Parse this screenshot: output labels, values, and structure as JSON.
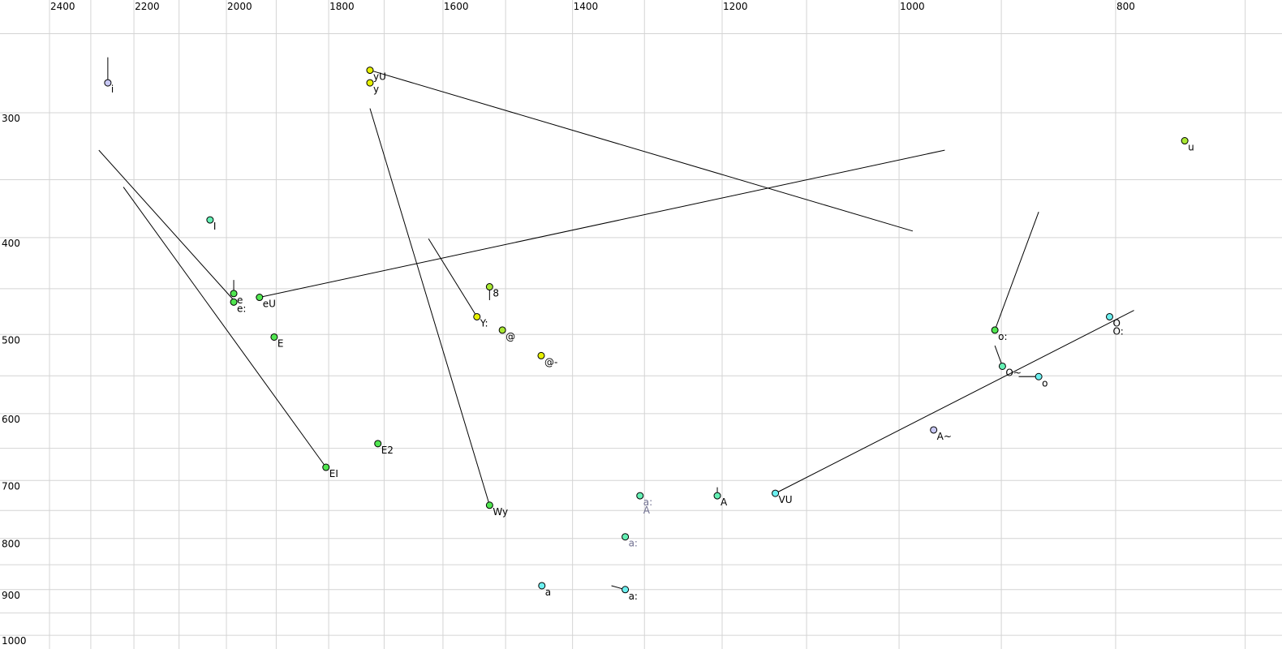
{
  "chart_data": {
    "type": "scatter",
    "title": "",
    "xlabel": "",
    "ylabel": "",
    "x_axis": {
      "quantity": "F2",
      "scale": "log",
      "reversed": true,
      "range": [
        2400,
        700
      ],
      "grid_step": 100,
      "tick_labels": [
        2400,
        2200,
        2000,
        1800,
        1600,
        1400,
        1200,
        1000,
        800
      ]
    },
    "y_axis": {
      "quantity": "F1",
      "scale": "log",
      "reversed": false,
      "range": [
        250,
        1000
      ],
      "grid_step": 50,
      "tick_labels": [
        300,
        400,
        500,
        600,
        700,
        800,
        900,
        1000
      ]
    },
    "grid": true,
    "colors": {
      "lavender": "#c8c8f4",
      "yellow": "#e6f000",
      "lime": "#a8e832",
      "green": "#50e650",
      "mint": "#64f0b4",
      "cyan": "#6cf0f0",
      "line": "#000000",
      "gray_label": "#707090"
    },
    "points": [
      {
        "label": "i",
        "f2": 2260,
        "f1": 280,
        "color": "lavender"
      },
      {
        "label": "yU",
        "f2": 1725,
        "f1": 272,
        "color": "yellow"
      },
      {
        "label": "y",
        "f2": 1725,
        "f1": 280,
        "color": "yellow"
      },
      {
        "label": "u",
        "f2": 745,
        "f1": 320,
        "color": "lime"
      },
      {
        "label": "I",
        "f2": 2034,
        "f1": 384,
        "color": "mint"
      },
      {
        "label": "e",
        "f2": 1985,
        "f1": 455,
        "color": "green"
      },
      {
        "label": "e:",
        "f2": 1985,
        "f1": 464,
        "color": "green"
      },
      {
        "label": "eU",
        "f2": 1933,
        "f1": 459,
        "color": "green"
      },
      {
        "label": "E",
        "f2": 1904,
        "f1": 503,
        "color": "green"
      },
      {
        "label": "EI",
        "f2": 1805,
        "f1": 679,
        "color": "green"
      },
      {
        "label": "E2",
        "f2": 1711,
        "f1": 643,
        "color": "green"
      },
      {
        "label": "8",
        "f2": 1525,
        "f1": 448,
        "color": "lime"
      },
      {
        "label": "Y:",
        "f2": 1545,
        "f1": 480,
        "color": "yellow"
      },
      {
        "label": "@",
        "f2": 1505,
        "f1": 495,
        "color": "lime"
      },
      {
        "label": "@-",
        "f2": 1446,
        "f1": 525,
        "color": "yellow"
      },
      {
        "label": "Wy",
        "f2": 1525,
        "f1": 741,
        "color": "green"
      },
      {
        "label": "a",
        "f2": 1445,
        "f1": 892,
        "color": "cyan"
      },
      {
        "label": "a:\nA",
        "f2": 1306,
        "f1": 725,
        "color": "mint",
        "gray": true
      },
      {
        "label": "a:",
        "f2": 1326,
        "f1": 797,
        "color": "mint",
        "gray": true
      },
      {
        "label": "a:",
        "f2": 1326,
        "f1": 900,
        "color": "cyan"
      },
      {
        "label": "A",
        "f2": 1206,
        "f1": 725,
        "color": "mint"
      },
      {
        "label": "VU",
        "f2": 1136,
        "f1": 721,
        "color": "cyan"
      },
      {
        "label": "A~",
        "f2": 965,
        "f1": 623,
        "color": "lavender"
      },
      {
        "label": "o:",
        "f2": 906,
        "f1": 495,
        "color": "green"
      },
      {
        "label": "O~",
        "f2": 899,
        "f1": 538,
        "color": "mint"
      },
      {
        "label": "o",
        "f2": 866,
        "f1": 551,
        "color": "cyan"
      },
      {
        "label": "O\nO:",
        "f2": 805,
        "f1": 480,
        "color": "cyan"
      }
    ],
    "trajectories": [
      {
        "from": [
          2260,
          264
        ],
        "to": [
          2260,
          280
        ]
      },
      {
        "from": [
          1725,
          272
        ],
        "to": [
          986,
          394
        ]
      },
      {
        "from": [
          954,
          327
        ],
        "to": [
          1933,
          459
        ]
      },
      {
        "from": [
          2281,
          327
        ],
        "to": [
          1985,
          462
        ]
      },
      {
        "from": [
          2224,
          356
        ],
        "to": [
          1805,
          679
        ]
      },
      {
        "from": [
          1725,
          297
        ],
        "to": [
          1525,
          741
        ]
      },
      {
        "from": [
          1624,
          401
        ],
        "to": [
          1545,
          480
        ]
      },
      {
        "from": [
          1985,
          441
        ],
        "to": [
          1985,
          455
        ]
      },
      {
        "from": [
          1525,
          448
        ],
        "to": [
          1525,
          462
        ]
      },
      {
        "from": [
          866,
          377
        ],
        "to": [
          906,
          495
        ]
      },
      {
        "from": [
          906,
          513
        ],
        "to": [
          899,
          538
        ]
      },
      {
        "from": [
          884,
          551
        ],
        "to": [
          866,
          551
        ]
      },
      {
        "from": [
          785,
          473
        ],
        "to": [
          1136,
          721
        ]
      },
      {
        "from": [
          1206,
          711
        ],
        "to": [
          1206,
          725
        ]
      },
      {
        "from": [
          1345,
          892
        ],
        "to": [
          1326,
          900
        ]
      }
    ]
  }
}
